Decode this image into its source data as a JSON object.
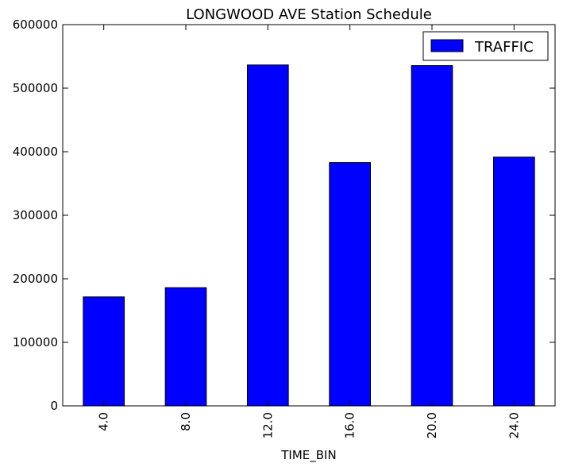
{
  "chart_data": {
    "type": "bar",
    "title": "LONGWOOD AVE Station Schedule",
    "xlabel": "TIME_BIN",
    "ylabel": "",
    "categories": [
      "4.0",
      "8.0",
      "12.0",
      "16.0",
      "20.0",
      "24.0"
    ],
    "series": [
      {
        "name": "TRAFFIC",
        "values": [
          171500,
          186000,
          536500,
          383000,
          535500,
          391500
        ]
      }
    ],
    "ylim": [
      0,
      600000
    ],
    "yticks": [
      0,
      100000,
      200000,
      300000,
      400000,
      500000,
      600000
    ],
    "ytick_labels": [
      "0",
      "100000",
      "200000",
      "300000",
      "400000",
      "500000",
      "600000"
    ],
    "grid": false,
    "legend_position": "top-right",
    "colors": {
      "bar_fill": "#0000ff",
      "bar_edge": "#000000",
      "axes": "#000000",
      "background": "#ffffff"
    }
  }
}
